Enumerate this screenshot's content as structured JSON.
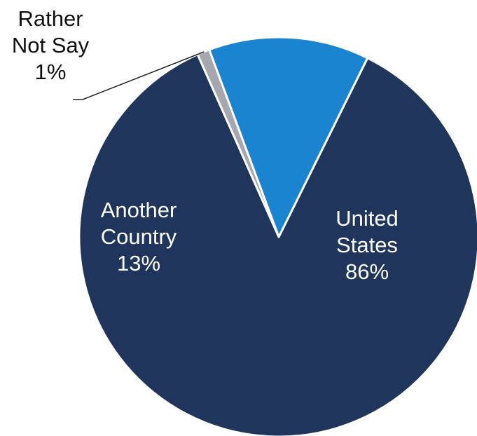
{
  "chart_data": {
    "type": "pie",
    "title": "",
    "start_angle_deg": 114,
    "direction": "counterclockwise",
    "slices": [
      {
        "label_lines": [
          "United",
          "States"
        ],
        "value": 86,
        "value_label": "86%",
        "color": "#1f355c"
      },
      {
        "label_lines": [
          "Another",
          "Country"
        ],
        "value": 13,
        "value_label": "13%",
        "color": "#1a84d1"
      },
      {
        "label_lines": [
          "Rather",
          "Not Say"
        ],
        "value": 1,
        "value_label": "1%",
        "color": "#a5a6ae"
      }
    ],
    "legend": "none",
    "slice_border_color": "#ffffff"
  }
}
